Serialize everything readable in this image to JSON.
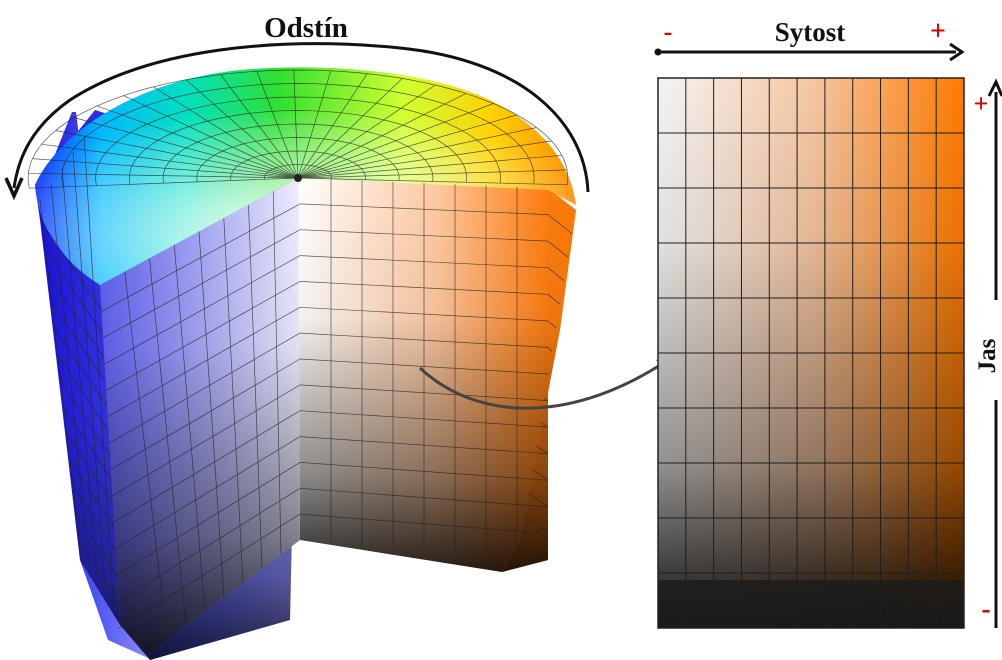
{
  "labels": {
    "hue": "Odstín",
    "saturation": "Sytost",
    "brightness": "Jas",
    "plus": "+",
    "minus": "-"
  },
  "colors": {
    "sign": "#d40000",
    "arrow": "#111111",
    "connector": "#444444",
    "grid": "#2b2b2b",
    "slice_hue": "#ff7a00"
  },
  "slice_grid": {
    "columns": 11,
    "rows": 10
  },
  "cylinder_grid": {
    "segments": 24,
    "rings": 8,
    "levels": 14
  }
}
